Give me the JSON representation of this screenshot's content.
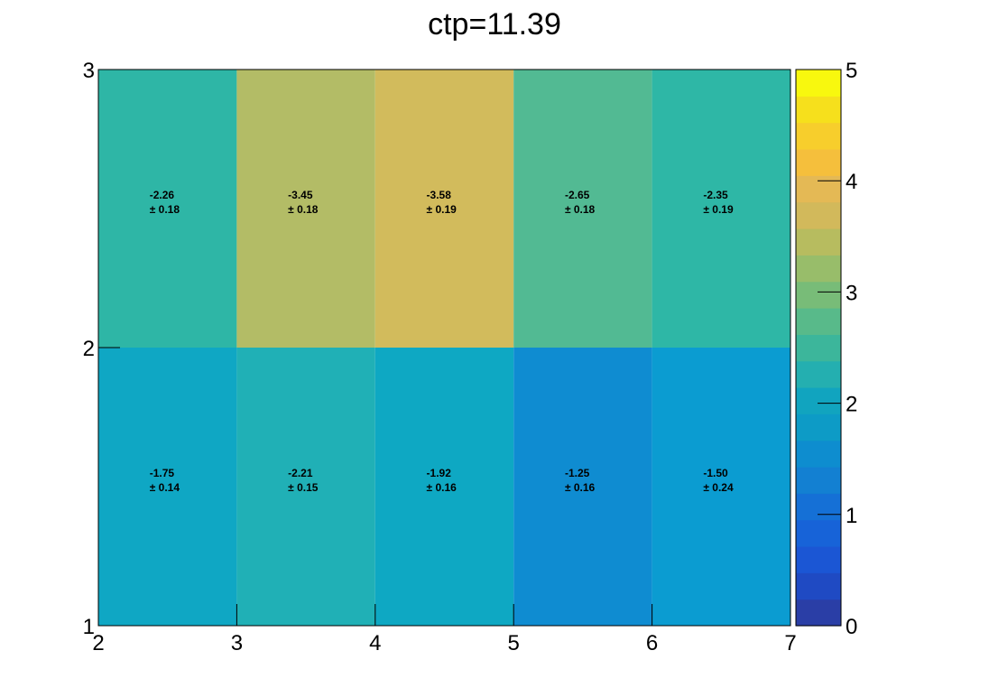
{
  "chart_data": {
    "type": "heatmap",
    "title": "ctp=11.39",
    "xlabel": "",
    "ylabel": "",
    "x_edges": [
      2,
      3,
      4,
      5,
      6,
      7
    ],
    "y_edges": [
      1,
      2,
      3
    ],
    "xlim": [
      2,
      7
    ],
    "ylim": [
      1,
      3
    ],
    "x_tick_labels": [
      "2",
      "3",
      "4",
      "5",
      "6",
      "7"
    ],
    "y_tick_labels": [
      "1",
      "2",
      "3"
    ],
    "colorbar": {
      "range": [
        0,
        5
      ],
      "tick_labels": [
        "0",
        "1",
        "2",
        "3",
        "4",
        "5"
      ],
      "colors": [
        "#2a3ea6",
        "#1f4ac3",
        "#1b56d4",
        "#1763d8",
        "#1570d6",
        "#1380d2",
        "#0e8dcf",
        "#0d9bc6",
        "#11a4bf",
        "#24afb0",
        "#3cb69b",
        "#58ba8a",
        "#78bc78",
        "#98bd6a",
        "#b7bc5f",
        "#d2b95b",
        "#e4b955",
        "#f5bf3c",
        "#f7ce2c",
        "#f6e01c",
        "#f8f80e"
      ]
    },
    "cells": [
      {
        "row": 0,
        "col": 0,
        "value": 1.75,
        "label": "-1.75",
        "error": "± 0.14",
        "color": "#0fa7c4"
      },
      {
        "row": 0,
        "col": 1,
        "value": 2.21,
        "label": "-2.21",
        "error": "± 0.15",
        "color": "#20b0b6"
      },
      {
        "row": 0,
        "col": 2,
        "value": 1.92,
        "label": "-1.92",
        "error": "± 0.16",
        "color": "#0ea8c3"
      },
      {
        "row": 0,
        "col": 3,
        "value": 1.25,
        "label": "-1.25",
        "error": "± 0.16",
        "color": "#0f8cd1"
      },
      {
        "row": 0,
        "col": 4,
        "value": 1.5,
        "label": "-1.50",
        "error": "± 0.24",
        "color": "#0b9cd1"
      },
      {
        "row": 1,
        "col": 0,
        "value": 2.26,
        "label": "-2.26",
        "error": "± 0.18",
        "color": "#2eb6a6"
      },
      {
        "row": 1,
        "col": 1,
        "value": 3.45,
        "label": "-3.45",
        "error": "± 0.18",
        "color": "#b3bc66"
      },
      {
        "row": 1,
        "col": 2,
        "value": 3.58,
        "label": "-3.58",
        "error": "± 0.19",
        "color": "#d2bb5c"
      },
      {
        "row": 1,
        "col": 3,
        "value": 2.65,
        "label": "-2.65",
        "error": "± 0.18",
        "color": "#52ba93"
      },
      {
        "row": 1,
        "col": 4,
        "value": 2.35,
        "label": "-2.35",
        "error": "± 0.19",
        "color": "#2eb7a6"
      }
    ],
    "grid": false,
    "legend": "colorbar-right"
  }
}
